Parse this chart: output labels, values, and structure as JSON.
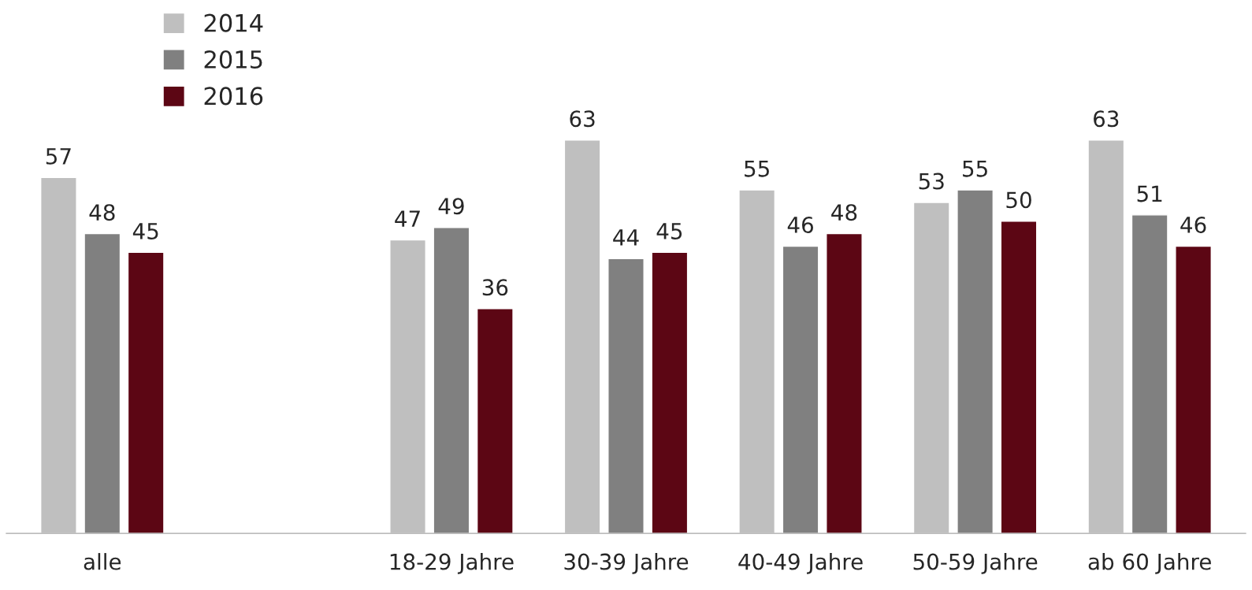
{
  "chart_data": {
    "type": "bar",
    "categories": [
      "alle",
      null,
      "18-29 Jahre",
      "30-39 Jahre",
      "40-49 Jahre",
      "50-59 Jahre",
      "ab 60 Jahre"
    ],
    "series": [
      {
        "name": "2014",
        "color": "#bfbfbf",
        "values": [
          57,
          null,
          47,
          63,
          55,
          53,
          63
        ]
      },
      {
        "name": "2015",
        "color": "#808080",
        "values": [
          48,
          null,
          49,
          44,
          46,
          55,
          51
        ]
      },
      {
        "name": "2016",
        "color": "#5c0614",
        "values": [
          45,
          null,
          36,
          45,
          48,
          50,
          46
        ]
      }
    ],
    "data_labels": true,
    "legend": "top left",
    "grid": false
  }
}
